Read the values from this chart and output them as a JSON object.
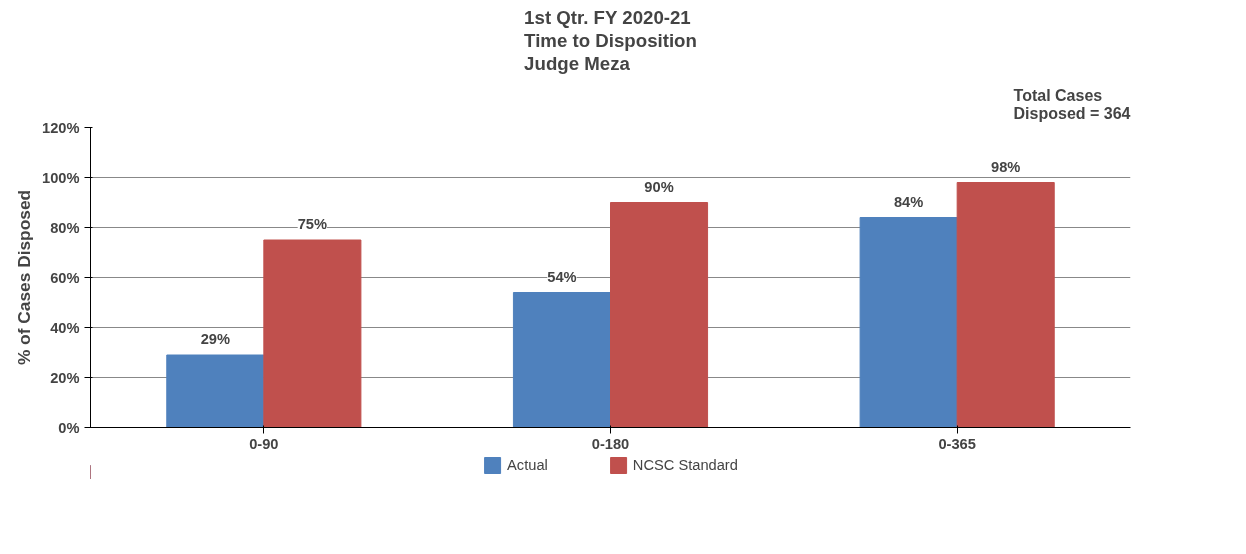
{
  "chart_data": {
    "type": "bar",
    "title": "1st Qtr. FY 2020-21\nTime to Disposition\nJudge Meza",
    "ylabel": "% of Cases Disposed",
    "annotations": [
      "Total Cases\nDisposed = 364"
    ],
    "categories": [
      "0-90",
      "0-180",
      "0-365"
    ],
    "series": [
      {
        "name": "Actual",
        "color": "#4f81bd",
        "values": [
          29,
          54,
          84
        ],
        "value_labels": [
          "29%",
          "54%",
          "84%"
        ]
      },
      {
        "name": "NCSC Standard",
        "color": "#c0504d",
        "values": [
          75,
          90,
          98
        ],
        "value_labels": [
          "75%",
          "90%",
          "98%"
        ]
      }
    ],
    "ylim": [
      0,
      120
    ],
    "yticks": [
      {
        "value": 0,
        "label": "0%"
      },
      {
        "value": 20,
        "label": "20%"
      },
      {
        "value": 40,
        "label": "40%"
      },
      {
        "value": 60,
        "label": "60%"
      },
      {
        "value": 80,
        "label": "80%"
      },
      {
        "value": 100,
        "label": "100%"
      },
      {
        "value": 120,
        "label": "120%"
      }
    ],
    "grid": "y",
    "legend": "bottom"
  }
}
